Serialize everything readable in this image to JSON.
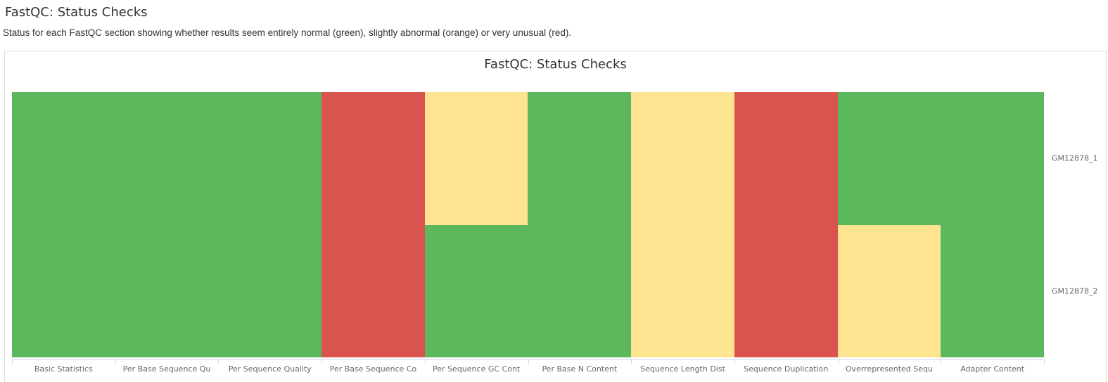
{
  "header": {
    "title": "FastQC: Status Checks",
    "description": "Status for each FastQC section showing whether results seem entirely normal (green), slightly abnormal (orange) or very unusual (red)."
  },
  "chart": {
    "title": "FastQC: Status Checks"
  },
  "chart_data": {
    "type": "heatmap",
    "title": "FastQC: Status Checks",
    "x_categories": [
      "Basic Statistics",
      "Per Base Sequence Qu",
      "Per Sequence Quality",
      "Per Base Sequence Co",
      "Per Sequence GC Cont",
      "Per Base N Content",
      "Sequence Length Dist",
      "Sequence Duplication",
      "Overrepresented Sequ",
      "Adapter Content"
    ],
    "y_categories": [
      "GM12878_1",
      "GM12878_2"
    ],
    "rows": [
      [
        "pass",
        "pass",
        "pass",
        "fail",
        "warn",
        "pass",
        "warn",
        "fail",
        "pass",
        "pass"
      ],
      [
        "pass",
        "pass",
        "pass",
        "fail",
        "pass",
        "pass",
        "warn",
        "fail",
        "warn",
        "pass"
      ]
    ],
    "status_colors": {
      "pass": "#5cb85c",
      "warn": "#fee391",
      "fail": "#d9534f"
    },
    "legend_position": "none",
    "grid": false,
    "axis_style": {
      "tick_color": "#ccd6eb",
      "label_color": "#666666"
    }
  }
}
